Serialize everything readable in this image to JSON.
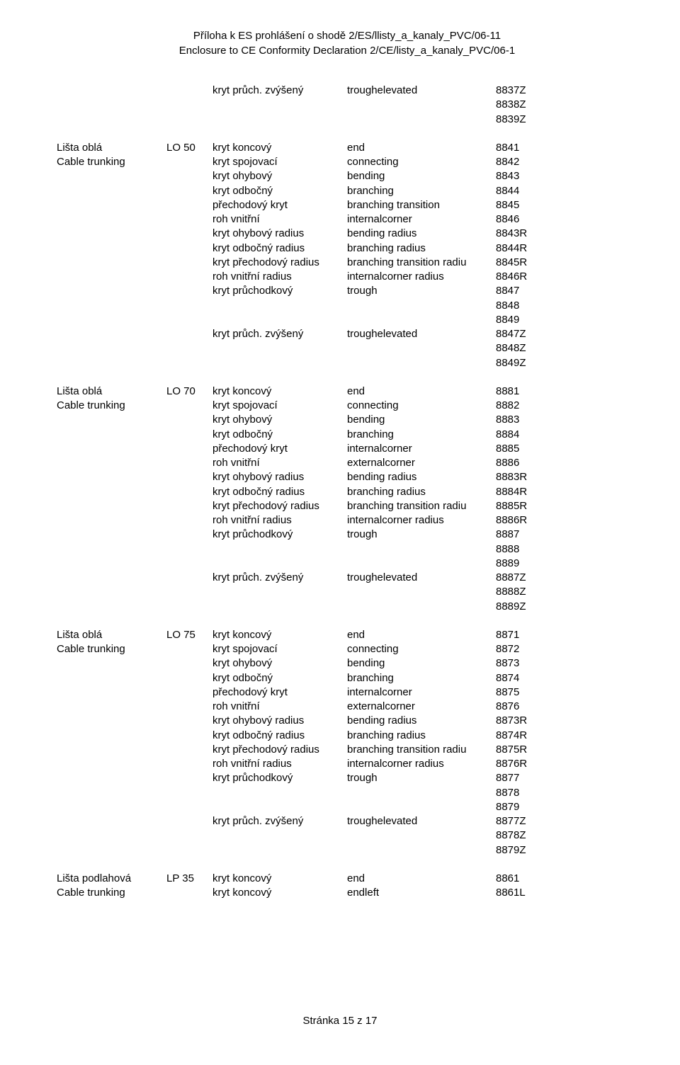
{
  "header": {
    "line1": "Příloha k ES prohlášení o shodě  2/ES/llisty_a_kanaly_PVC/06-11",
    "line2": "Enclosure to CE Conformity Declaration 2/CE/listy_a_kanaly_PVC/06-1"
  },
  "footer": "Stránka 15 z 17",
  "lead_rows": [
    {
      "c1": "",
      "c2": "",
      "c3": "kryt průch. zvýšený",
      "c4": "troughelevated",
      "c5": "8837Z"
    },
    {
      "c1": "",
      "c2": "",
      "c3": "",
      "c4": "",
      "c5": "8838Z"
    },
    {
      "c1": "",
      "c2": "",
      "c3": "",
      "c4": "",
      "c5": "8839Z"
    }
  ],
  "blocks": [
    {
      "rows": [
        {
          "c1": "Lišta oblá",
          "c2": "LO 50",
          "c3": "kryt koncový",
          "c4": "end",
          "c5": "8841"
        },
        {
          "c1": "Cable trunking",
          "c2": "",
          "c3": "kryt spojovací",
          "c4": "connecting",
          "c5": "8842"
        },
        {
          "c1": "",
          "c2": "",
          "c3": "kryt ohybový",
          "c4": "bending",
          "c5": "8843"
        },
        {
          "c1": "",
          "c2": "",
          "c3": "kryt odbočný",
          "c4": "branching",
          "c5": "8844"
        },
        {
          "c1": "",
          "c2": "",
          "c3": "přechodový kryt",
          "c4": "branching  transition",
          "c5": "8845"
        },
        {
          "c1": "",
          "c2": "",
          "c3": "roh vnitřní",
          "c4": "internalcorner",
          "c5": "8846"
        },
        {
          "c1": "",
          "c2": "",
          "c3": "kryt ohybový radius",
          "c4": "bending radius",
          "c5": "8843R"
        },
        {
          "c1": "",
          "c2": "",
          "c3": "kryt odbočný radius",
          "c4": "branching radius",
          "c5": "8844R"
        },
        {
          "c1": "",
          "c2": "",
          "c3": "kryt přechodový radius",
          "c4": "branching  transition radiu",
          "c5": "8845R"
        },
        {
          "c1": "",
          "c2": "",
          "c3": "roh vnitřní radius",
          "c4": "internalcorner radius",
          "c5": "8846R"
        },
        {
          "c1": "",
          "c2": "",
          "c3": "kryt průchodkový",
          "c4": "trough",
          "c5": "8847"
        },
        {
          "c1": "",
          "c2": "",
          "c3": "",
          "c4": "",
          "c5": "8848"
        },
        {
          "c1": "",
          "c2": "",
          "c3": "",
          "c4": "",
          "c5": "8849"
        },
        {
          "c1": "",
          "c2": "",
          "c3": "kryt průch. zvýšený",
          "c4": "troughelevated",
          "c5": "8847Z"
        },
        {
          "c1": "",
          "c2": "",
          "c3": "",
          "c4": "",
          "c5": "8848Z"
        },
        {
          "c1": "",
          "c2": "",
          "c3": "",
          "c4": "",
          "c5": "8849Z"
        }
      ]
    },
    {
      "rows": [
        {
          "c1": "Lišta oblá",
          "c2": "LO 70",
          "c3": "kryt koncový",
          "c4": "end",
          "c5": "8881"
        },
        {
          "c1": "Cable trunking",
          "c2": "",
          "c3": "kryt spojovací",
          "c4": "connecting",
          "c5": "8882"
        },
        {
          "c1": "",
          "c2": "",
          "c3": "kryt ohybový",
          "c4": "bending",
          "c5": "8883"
        },
        {
          "c1": "",
          "c2": "",
          "c3": "kryt odbočný",
          "c4": "branching",
          "c5": "8884"
        },
        {
          "c1": "",
          "c2": "",
          "c3": "přechodový kryt",
          "c4": "internalcorner",
          "c5": "8885"
        },
        {
          "c1": "",
          "c2": "",
          "c3": "roh vnitřní",
          "c4": "externalcorner",
          "c5": "8886"
        },
        {
          "c1": "",
          "c2": "",
          "c3": "kryt ohybový radius",
          "c4": "bending radius",
          "c5": "8883R"
        },
        {
          "c1": "",
          "c2": "",
          "c3": "kryt odbočný radius",
          "c4": "branching radius",
          "c5": "8884R"
        },
        {
          "c1": "",
          "c2": "",
          "c3": "kryt přechodový radius",
          "c4": "branching  transition radiu",
          "c5": "8885R"
        },
        {
          "c1": "",
          "c2": "",
          "c3": "roh vnitřní radius",
          "c4": "internalcorner radius",
          "c5": "8886R"
        },
        {
          "c1": "",
          "c2": "",
          "c3": "kryt průchodkový",
          "c4": "trough",
          "c5": "8887"
        },
        {
          "c1": "",
          "c2": "",
          "c3": "",
          "c4": "",
          "c5": "8888"
        },
        {
          "c1": "",
          "c2": "",
          "c3": "",
          "c4": "",
          "c5": "8889"
        },
        {
          "c1": "",
          "c2": "",
          "c3": "kryt průch. zvýšený",
          "c4": "troughelevated",
          "c5": "8887Z"
        },
        {
          "c1": "",
          "c2": "",
          "c3": "",
          "c4": "",
          "c5": "8888Z"
        },
        {
          "c1": "",
          "c2": "",
          "c3": "",
          "c4": "",
          "c5": "8889Z"
        }
      ]
    },
    {
      "rows": [
        {
          "c1": "Lišta oblá",
          "c2": "LO 75",
          "c3": "kryt koncový",
          "c4": "end",
          "c5": "8871"
        },
        {
          "c1": "Cable trunking",
          "c2": "",
          "c3": "kryt spojovací",
          "c4": "connecting",
          "c5": "8872"
        },
        {
          "c1": "",
          "c2": "",
          "c3": "kryt ohybový",
          "c4": "bending",
          "c5": "8873"
        },
        {
          "c1": "",
          "c2": "",
          "c3": "kryt odbočný",
          "c4": "branching",
          "c5": "8874"
        },
        {
          "c1": "",
          "c2": "",
          "c3": "přechodový kryt",
          "c4": "internalcorner",
          "c5": "8875"
        },
        {
          "c1": "",
          "c2": "",
          "c3": "roh vnitřní",
          "c4": "externalcorner",
          "c5": "8876"
        },
        {
          "c1": "",
          "c2": "",
          "c3": "kryt ohybový radius",
          "c4": "bending radius",
          "c5": "8873R"
        },
        {
          "c1": "",
          "c2": "",
          "c3": "kryt odbočný radius",
          "c4": "branching radius",
          "c5": "8874R"
        },
        {
          "c1": "",
          "c2": "",
          "c3": "kryt přechodový radius",
          "c4": "branching  transition radiu",
          "c5": "8875R"
        },
        {
          "c1": "",
          "c2": "",
          "c3": "roh vnitřní radius",
          "c4": "internalcorner radius",
          "c5": "8876R"
        },
        {
          "c1": "",
          "c2": "",
          "c3": "kryt průchodkový",
          "c4": "trough",
          "c5": "8877"
        },
        {
          "c1": "",
          "c2": "",
          "c3": "",
          "c4": "",
          "c5": "8878"
        },
        {
          "c1": "",
          "c2": "",
          "c3": "",
          "c4": "",
          "c5": "8879"
        },
        {
          "c1": "",
          "c2": "",
          "c3": "kryt průch. zvýšený",
          "c4": "troughelevated",
          "c5": "8877Z"
        },
        {
          "c1": "",
          "c2": "",
          "c3": "",
          "c4": "",
          "c5": "8878Z"
        },
        {
          "c1": "",
          "c2": "",
          "c3": "",
          "c4": "",
          "c5": "8879Z"
        }
      ]
    },
    {
      "rows": [
        {
          "c1": "Lišta podlahová",
          "c2": "LP 35",
          "c3": "kryt koncový",
          "c4": "end",
          "c5": "8861"
        },
        {
          "c1": "Cable trunking",
          "c2": "",
          "c3": "kryt koncový",
          "c4": "endleft",
          "c5": "8861L"
        }
      ]
    }
  ]
}
